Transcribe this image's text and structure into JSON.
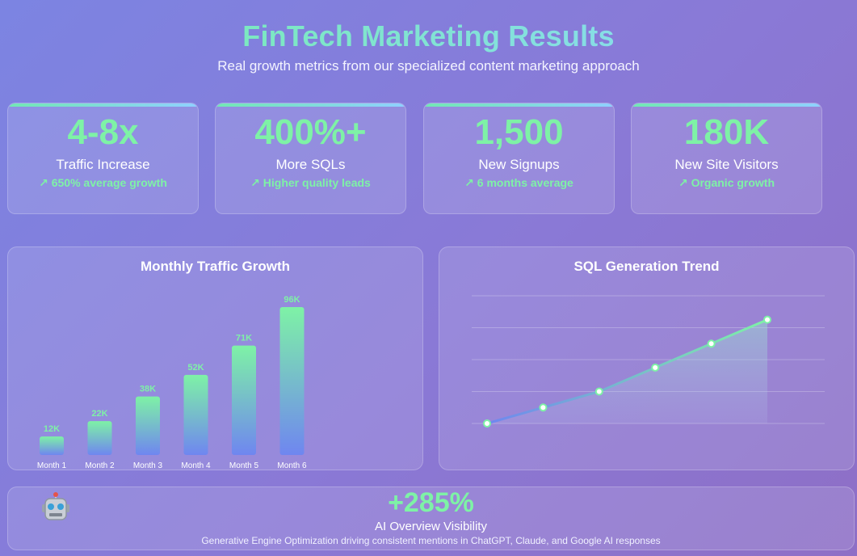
{
  "header": {
    "title": "FinTech Marketing Results",
    "subtitle": "Real growth metrics from our specialized content marketing approach"
  },
  "stats": [
    {
      "value": "4-8x",
      "label": "Traffic Increase",
      "sub": "↗ 650% average growth"
    },
    {
      "value": "400%+",
      "label": "More SQLs",
      "sub": "↗ Higher quality leads"
    },
    {
      "value": "1,500",
      "label": "New Signups",
      "sub": "↗ 6 months average"
    },
    {
      "value": "180K",
      "label": "New Site Visitors",
      "sub": "↗ Organic growth"
    }
  ],
  "bottom": {
    "icon": "robot-icon",
    "value": "+285%",
    "label": "AI Overview Visibility",
    "description": "Generative Engine Optimization driving consistent mentions in ChatGPT, Claude, and Google AI responses"
  },
  "colors": {
    "accent_green": "#7ef2a6",
    "accent_blue": "#8fd0ff",
    "bar_bottom": "#6f86f0"
  },
  "chart_data": [
    {
      "type": "bar",
      "title": "Monthly Traffic Growth",
      "categories": [
        "Month 1",
        "Month 2",
        "Month 3",
        "Month 4",
        "Month 5",
        "Month 6"
      ],
      "values": [
        12,
        22,
        38,
        52,
        71,
        96
      ],
      "data_labels": [
        "12K",
        "22K",
        "38K",
        "52K",
        "71K",
        "96K"
      ],
      "ylim": [
        0,
        96
      ]
    },
    {
      "type": "line",
      "title": "SQL Generation Trend",
      "x": [
        1,
        2,
        3,
        4,
        5,
        6
      ],
      "values": [
        0,
        1,
        2,
        3.5,
        5,
        6.5
      ],
      "ylim": [
        0,
        8
      ],
      "grid": true,
      "fill": "area"
    }
  ]
}
